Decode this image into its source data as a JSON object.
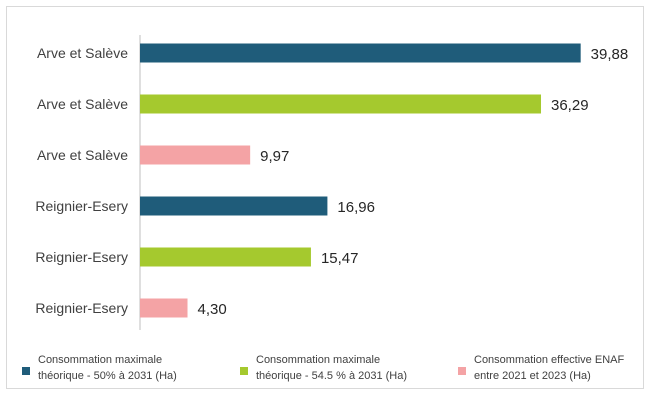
{
  "chart_data": {
    "type": "bar",
    "orientation": "horizontal",
    "categories": [
      "Arve et Salève",
      "Arve et Salève",
      "Arve et Salève",
      "Reignier-Esery",
      "Reignier-Esery",
      "Reignier-Esery"
    ],
    "values": [
      39.88,
      36.29,
      9.97,
      16.96,
      15.47,
      4.3
    ],
    "value_labels": [
      "39,88",
      "36,29",
      "9,97",
      "16,96",
      "15,47",
      "4,30"
    ],
    "bar_series": [
      0,
      1,
      2,
      0,
      1,
      2
    ],
    "series": [
      {
        "name": "Consommation maximale\nthéorique - 50% à 2031 (Ha)",
        "color": "#1f5c7a"
      },
      {
        "name": "Consommation maximale\nthéorique - 54.5 % à 2031 (Ha)",
        "color": "#a5c92e"
      },
      {
        "name": "Consommation effective ENAF\nentre 2021 et 2023 (Ha)",
        "color": "#f4a3a5"
      }
    ],
    "xlim": [
      0,
      40
    ],
    "grid": false,
    "legend_position": "bottom",
    "title": "",
    "xlabel": "",
    "ylabel": ""
  }
}
